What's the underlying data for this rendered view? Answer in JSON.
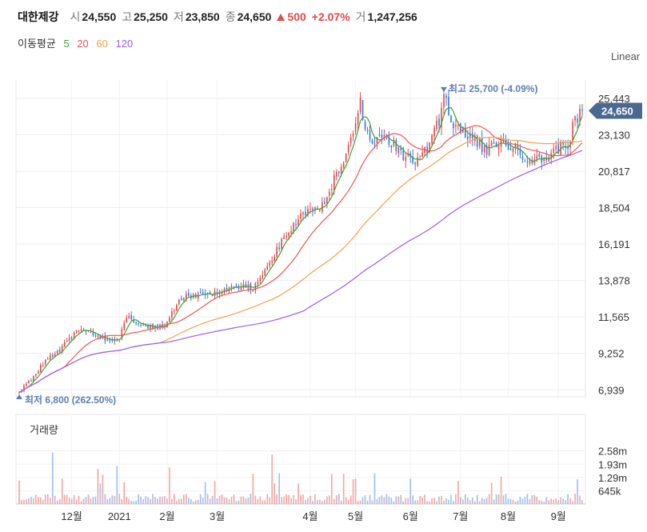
{
  "header": {
    "name": "대한제강",
    "open_label": "시",
    "open": "24,550",
    "high_label": "고",
    "high": "25,250",
    "low_label": "저",
    "low": "23,850",
    "close_label": "종",
    "close": "24,650",
    "change": "500",
    "change_pct": "+2.07%",
    "volume_label": "거",
    "volume": "1,247,256",
    "up_color": "#e34a4a"
  },
  "legend": {
    "label": "이동평균",
    "items": [
      {
        "text": "5",
        "color": "#3aa63a"
      },
      {
        "text": "20",
        "color": "#f05656"
      },
      {
        "text": "60",
        "color": "#f3a24c"
      },
      {
        "text": "120",
        "color": "#9b5cf0"
      }
    ]
  },
  "scale_label": "Linear",
  "volume_title": "거래량",
  "annotations": {
    "high": "최고 25,700 (-4.09%)",
    "low": "최저 6,800 (262.50%)",
    "current": "24,650",
    "current_color": "#4a6890"
  },
  "chart_data": {
    "type": "candlestick",
    "price_axis": {
      "ticks": [
        "25,443",
        "23,130",
        "20,817",
        "18,504",
        "16,191",
        "13,878",
        "11,565",
        "9,252",
        "6,939"
      ],
      "ylim": [
        6800,
        26300
      ]
    },
    "volume_axis": {
      "ticks": [
        "2.58m",
        "1.93m",
        "1.29m",
        "645k"
      ],
      "ylim": [
        0,
        3300000
      ]
    },
    "x_ticks": [
      "12월",
      "2021",
      "2월",
      "3월",
      "4월",
      "5월",
      "6월",
      "7월",
      "8월",
      "9월"
    ],
    "x_tick_positions": [
      22,
      42,
      62,
      83,
      122,
      141,
      164,
      185,
      205,
      226
    ],
    "num_days": 237,
    "high_point": {
      "index": 178,
      "value": 25700
    },
    "low_point": {
      "index": 0,
      "value": 6800
    },
    "last_close": 24650,
    "up_color": "#e34a4a",
    "down_color": "#3b7ad9",
    "ma_colors": {
      "ma5": "#3aa63a",
      "ma20": "#f05656",
      "ma60": "#f3a24c",
      "ma120": "#9b5cf0"
    },
    "grid": true
  }
}
